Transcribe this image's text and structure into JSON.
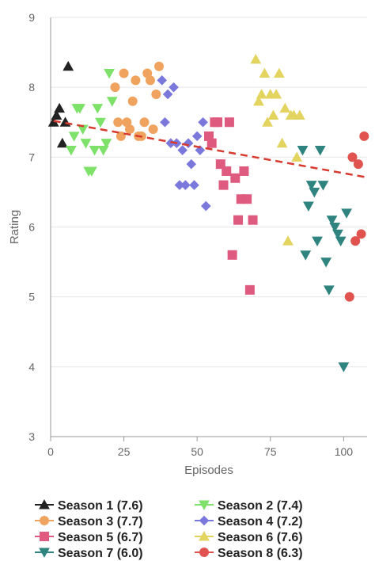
{
  "chart_data": {
    "type": "scatter",
    "title": "",
    "xlabel": "Episodes",
    "ylabel": "Rating",
    "xlim": [
      0,
      108
    ],
    "ylim": [
      3,
      9
    ],
    "xticks": [
      "0",
      "25",
      "50",
      "75",
      "100"
    ],
    "yticks": [
      "3",
      "4",
      "5",
      "6",
      "7",
      "8",
      "9"
    ],
    "grid": "horizontal",
    "legend_position": "bottom",
    "trendline": {
      "color": "#d73a2f",
      "style": "dashed",
      "from": [
        1,
        7.52
      ],
      "to": [
        108,
        6.71
      ]
    },
    "series": [
      {
        "name": "Season 1 (7.6)",
        "color": "#222222",
        "marker": "triangle-up",
        "points": [
          [
            1,
            7.5
          ],
          [
            2,
            7.6
          ],
          [
            3,
            7.7
          ],
          [
            4,
            7.2
          ],
          [
            5,
            7.5
          ],
          [
            6,
            8.3
          ]
        ]
      },
      {
        "name": "Season 2 (7.4)",
        "color": "#7ee26a",
        "marker": "triangle-down",
        "points": [
          [
            7,
            7.1
          ],
          [
            8,
            7.3
          ],
          [
            9,
            7.7
          ],
          [
            10,
            7.7
          ],
          [
            11,
            7.4
          ],
          [
            12,
            7.2
          ],
          [
            13,
            6.8
          ],
          [
            14,
            6.8
          ],
          [
            15,
            7.1
          ],
          [
            16,
            7.7
          ],
          [
            17,
            7.5
          ],
          [
            18,
            7.1
          ],
          [
            19,
            7.2
          ],
          [
            20,
            8.2
          ],
          [
            21,
            7.8
          ]
        ]
      },
      {
        "name": "Season 3 (7.7)",
        "color": "#f0a35e",
        "marker": "circle",
        "points": [
          [
            22,
            8.0
          ],
          [
            23,
            7.5
          ],
          [
            24,
            7.3
          ],
          [
            25,
            8.2
          ],
          [
            26,
            7.5
          ],
          [
            27,
            7.4
          ],
          [
            28,
            7.8
          ],
          [
            29,
            8.1
          ],
          [
            30,
            7.3
          ],
          [
            31,
            7.3
          ],
          [
            32,
            7.5
          ],
          [
            33,
            8.2
          ],
          [
            34,
            8.1
          ],
          [
            35,
            7.4
          ],
          [
            36,
            7.9
          ],
          [
            37,
            8.3
          ]
        ]
      },
      {
        "name": "Season 4 (7.2)",
        "color": "#7b78dc",
        "marker": "diamond",
        "points": [
          [
            38,
            8.1
          ],
          [
            39,
            7.5
          ],
          [
            40,
            7.9
          ],
          [
            41,
            7.2
          ],
          [
            42,
            8.0
          ],
          [
            43,
            7.2
          ],
          [
            44,
            6.6
          ],
          [
            45,
            7.1
          ],
          [
            46,
            6.6
          ],
          [
            47,
            7.2
          ],
          [
            48,
            6.9
          ],
          [
            49,
            6.6
          ],
          [
            50,
            7.3
          ],
          [
            51,
            7.1
          ],
          [
            52,
            7.5
          ],
          [
            53,
            6.3
          ]
        ]
      },
      {
        "name": "Season 5 (6.7)",
        "color": "#df5a7f",
        "marker": "square",
        "points": [
          [
            54,
            7.3
          ],
          [
            55,
            7.2
          ],
          [
            56,
            7.5
          ],
          [
            57,
            7.5
          ],
          [
            58,
            6.9
          ],
          [
            59,
            6.6
          ],
          [
            60,
            6.8
          ],
          [
            61,
            7.5
          ],
          [
            62,
            5.6
          ],
          [
            63,
            6.7
          ],
          [
            64,
            6.1
          ],
          [
            65,
            6.4
          ],
          [
            66,
            6.8
          ],
          [
            67,
            6.4
          ],
          [
            68,
            5.1
          ],
          [
            69,
            6.1
          ]
        ]
      },
      {
        "name": "Season 6 (7.6)",
        "color": "#e3d35f",
        "marker": "triangle-up",
        "points": [
          [
            70,
            8.4
          ],
          [
            71,
            7.8
          ],
          [
            72,
            7.9
          ],
          [
            73,
            8.2
          ],
          [
            74,
            7.5
          ],
          [
            75,
            7.9
          ],
          [
            76,
            7.6
          ],
          [
            77,
            7.9
          ],
          [
            78,
            8.2
          ],
          [
            79,
            7.2
          ],
          [
            80,
            7.7
          ],
          [
            81,
            5.8
          ],
          [
            82,
            7.6
          ],
          [
            83,
            7.6
          ],
          [
            84,
            7.0
          ],
          [
            85,
            7.6
          ]
        ]
      },
      {
        "name": "Season 7 (6.0)",
        "color": "#2f8480",
        "marker": "triangle-down",
        "points": [
          [
            86,
            7.1
          ],
          [
            87,
            5.6
          ],
          [
            88,
            6.3
          ],
          [
            89,
            6.6
          ],
          [
            90,
            6.5
          ],
          [
            91,
            5.8
          ],
          [
            92,
            7.1
          ],
          [
            93,
            6.6
          ],
          [
            94,
            5.5
          ],
          [
            95,
            5.1
          ],
          [
            96,
            6.1
          ],
          [
            97,
            6.0
          ],
          [
            98,
            5.9
          ],
          [
            99,
            5.8
          ],
          [
            100,
            4.0
          ],
          [
            101,
            6.2
          ]
        ]
      },
      {
        "name": "Season 8 (6.3)",
        "color": "#e0534f",
        "marker": "circle",
        "points": [
          [
            102,
            5.0
          ],
          [
            103,
            7.0
          ],
          [
            104,
            5.8
          ],
          [
            105,
            6.9
          ],
          [
            106,
            5.9
          ],
          [
            107,
            7.3
          ]
        ]
      }
    ]
  }
}
